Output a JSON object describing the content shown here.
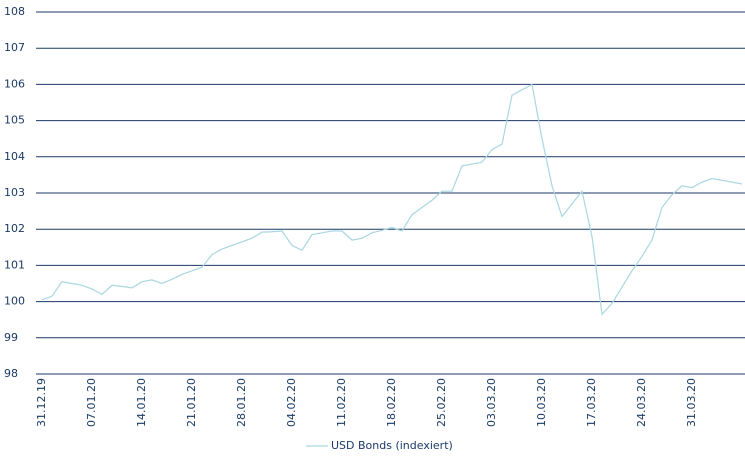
{
  "chart_data": {
    "type": "line",
    "categories": [
      "31.12.19",
      null,
      null,
      null,
      null,
      "07.01.20",
      null,
      null,
      null,
      null,
      "14.01.20",
      null,
      null,
      null,
      null,
      "21.01.20",
      null,
      null,
      null,
      null,
      "28.01.20",
      null,
      null,
      null,
      null,
      "04.02.20",
      null,
      null,
      null,
      null,
      "11.02.20",
      null,
      null,
      null,
      null,
      "18.02.20",
      null,
      null,
      null,
      null,
      "25.02.20",
      null,
      null,
      null,
      null,
      "03.03.20",
      null,
      null,
      null,
      null,
      "10.03.20",
      null,
      null,
      null,
      null,
      "17.03.20",
      null,
      null,
      null,
      null,
      "24.03.20",
      null,
      null,
      null,
      null,
      "31.03.20",
      null,
      null,
      null,
      null,
      null
    ],
    "series": [
      {
        "name": "USD Bonds (indexiert)",
        "color": "#a9d6e0",
        "values": [
          100.05,
          100.15,
          100.55,
          100.5,
          100.45,
          100.35,
          100.2,
          100.45,
          100.42,
          100.38,
          100.55,
          100.6,
          100.5,
          100.62,
          100.75,
          100.85,
          100.95,
          101.3,
          101.45,
          101.55,
          101.65,
          101.75,
          101.92,
          101.93,
          101.95,
          101.55,
          101.42,
          101.85,
          101.9,
          101.95,
          101.95,
          101.7,
          101.75,
          101.9,
          101.97,
          102.05,
          101.95,
          102.4,
          102.6,
          102.8,
          103.05,
          103.05,
          103.75,
          103.8,
          103.85,
          104.2,
          104.35,
          105.7,
          105.85,
          106.0,
          104.5,
          103.2,
          102.35,
          102.7,
          103.05,
          101.8,
          99.65,
          99.95,
          100.4,
          100.85,
          101.25,
          101.7,
          102.6,
          102.95,
          103.2,
          103.15,
          103.3,
          103.4,
          103.35,
          103.3,
          103.25
        ]
      }
    ],
    "ylim": [
      98,
      108
    ],
    "yticks": [
      98,
      99,
      100,
      101,
      102,
      103,
      104,
      105,
      106,
      107,
      108
    ],
    "grid": true
  }
}
